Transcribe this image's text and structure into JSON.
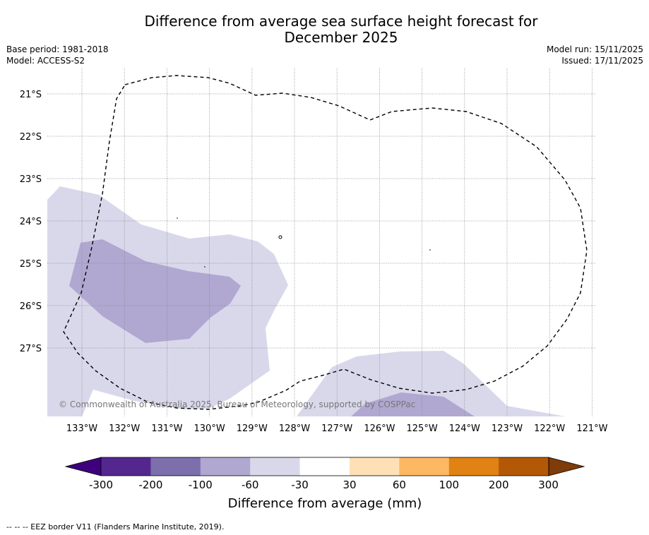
{
  "title_line1": "Difference from average sea surface height forecast for",
  "title_line2": "December 2025",
  "base_period": "Base period: 1981-2018",
  "model": "Model: ACCESS-S2",
  "model_run": "Model run: 15/11/2025",
  "issued": "Issued: 17/11/2025",
  "copyright": "© Commonwealth of Australia 2025, Bureau of Meteorology, supported by COSPPac",
  "footer": "--  --  -- EEZ border V11 (Flanders Marine Institute, 2019).",
  "lon_labels": [
    "133°W",
    "132°W",
    "131°W",
    "130°W",
    "129°W",
    "128°W",
    "127°W",
    "126°W",
    "125°W",
    "124°W",
    "123°W",
    "122°W",
    "121°W"
  ],
  "lat_labels": [
    "21°S",
    "22°S",
    "23°S",
    "24°S",
    "25°S",
    "26°S",
    "27°S"
  ],
  "colorbar": {
    "title": "Difference from average (mm)",
    "ticks": [
      "-300",
      "-200",
      "-100",
      "-60",
      "-30",
      "30",
      "60",
      "100",
      "200",
      "300"
    ],
    "colors": [
      "#3f007d",
      "#54278f",
      "#7c6fac",
      "#b0a8d1",
      "#d9d8eb",
      "#ffffff",
      "#fee0b6",
      "#fdb863",
      "#e08214",
      "#b35806",
      "#7f3b08"
    ]
  },
  "shade_colors": {
    "light": "#d9d8eb",
    "medium": "#b0a8d1",
    "eez": "#000000",
    "grid": "#888888"
  }
}
